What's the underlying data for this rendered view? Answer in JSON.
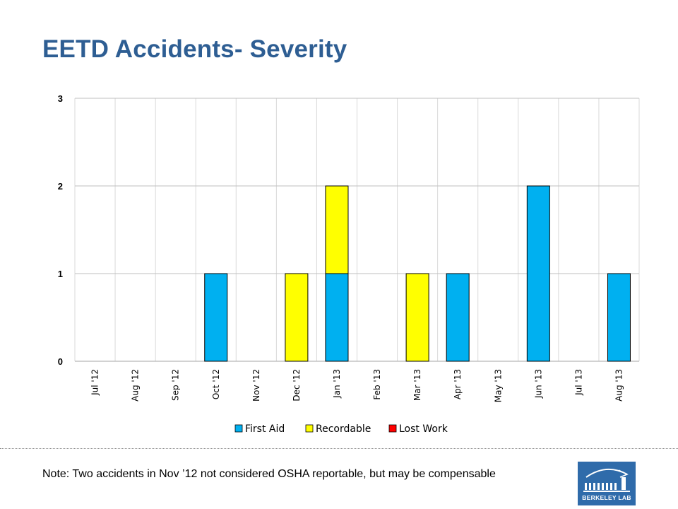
{
  "title": "EETD Accidents-  Severity",
  "note": "Note: Two accidents in Nov ’12 not considered OSHA reportable, but may be compensable",
  "logo": {
    "text": "BERKELEY LAB",
    "icon": "berkeley-lab-logo-icon"
  },
  "colors": {
    "first_aid": "#00b0f0",
    "recordable": "#ffff00",
    "lost_work": "#ff0000",
    "grid": "#bfbfbf",
    "title": "#2e5e93"
  },
  "chart_data": {
    "type": "bar",
    "stacked": true,
    "categories": [
      "Jul '12",
      "Aug '12",
      "Sep '12",
      "Oct '12",
      "Nov '12",
      "Dec '12",
      "Jan '13",
      "Feb '13",
      "Mar '13",
      "Apr '13",
      "May '13",
      "Jun '13",
      "Jul '13",
      "Aug '13"
    ],
    "series": [
      {
        "name": "First Aid",
        "color": "#00b0f0",
        "values": [
          0,
          0,
          0,
          1,
          0,
          0,
          1,
          0,
          0,
          1,
          0,
          2,
          0,
          1
        ]
      },
      {
        "name": "Recordable",
        "color": "#ffff00",
        "values": [
          0,
          0,
          0,
          0,
          0,
          1,
          1,
          0,
          1,
          0,
          0,
          0,
          0,
          0
        ]
      },
      {
        "name": "Lost Work",
        "color": "#ff0000",
        "values": [
          0,
          0,
          0,
          0,
          0,
          0,
          0,
          0,
          0,
          0,
          0,
          0,
          0,
          0
        ]
      }
    ],
    "yticks": [
      0,
      1,
      2,
      3
    ],
    "ylim": [
      0,
      3
    ],
    "grid": true,
    "legend": "bottom",
    "xlabel": "",
    "ylabel": ""
  }
}
